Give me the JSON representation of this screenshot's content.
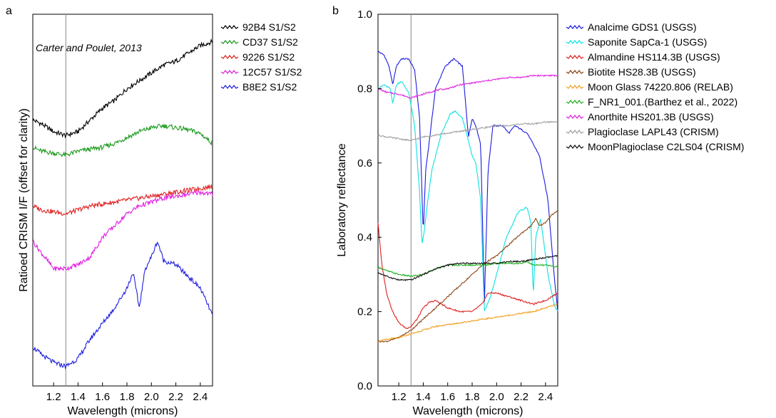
{
  "chart_data": [
    {
      "type": "line",
      "panel_label": "a",
      "xlabel": "Wavelength (microns)",
      "ylabel": "Ratioed CRISM I/F (offset for clarity)",
      "xlim": [
        1.03,
        2.5
      ],
      "xticks": [
        1.2,
        1.4,
        1.6,
        1.8,
        2.0,
        2.2,
        2.4
      ],
      "yticks_shown": false,
      "annotation": "Carter and Poulet, 2013",
      "reference_line_x": 1.3,
      "legend_position": "right-outside",
      "series": [
        {
          "name": "92B4 S1/S2",
          "color": "#000000",
          "x": [
            1.03,
            1.1,
            1.2,
            1.3,
            1.4,
            1.5,
            1.6,
            1.7,
            1.8,
            1.9,
            2.0,
            2.1,
            2.2,
            2.3,
            2.4,
            2.5
          ],
          "y": [
            0.78,
            0.77,
            0.75,
            0.74,
            0.75,
            0.78,
            0.81,
            0.83,
            0.86,
            0.88,
            0.9,
            0.92,
            0.93,
            0.95,
            0.97,
            0.98
          ]
        },
        {
          "name": "CD37 S1/S2",
          "color": "#1a9a1a",
          "x": [
            1.03,
            1.1,
            1.2,
            1.3,
            1.4,
            1.5,
            1.6,
            1.7,
            1.8,
            1.9,
            2.0,
            2.1,
            2.2,
            2.3,
            2.4,
            2.5
          ],
          "y": [
            0.71,
            0.7,
            0.695,
            0.69,
            0.7,
            0.705,
            0.71,
            0.72,
            0.735,
            0.75,
            0.76,
            0.765,
            0.76,
            0.755,
            0.745,
            0.72
          ]
        },
        {
          "name": "9226 S1/S2",
          "color": "#e02020",
          "x": [
            1.03,
            1.1,
            1.2,
            1.3,
            1.4,
            1.5,
            1.6,
            1.7,
            1.8,
            1.9,
            2.0,
            2.1,
            2.2,
            2.3,
            2.4,
            2.5
          ],
          "y": [
            0.56,
            0.55,
            0.545,
            0.54,
            0.55,
            0.56,
            0.565,
            0.57,
            0.575,
            0.58,
            0.585,
            0.59,
            0.595,
            0.6,
            0.605,
            0.61
          ]
        },
        {
          "name": "12C57 S1/S2",
          "color": "#e020e0",
          "x": [
            1.03,
            1.1,
            1.2,
            1.3,
            1.4,
            1.5,
            1.6,
            1.7,
            1.8,
            1.9,
            2.0,
            2.1,
            2.2,
            2.3,
            2.4,
            2.5
          ],
          "y": [
            0.47,
            0.44,
            0.4,
            0.4,
            0.41,
            0.43,
            0.48,
            0.51,
            0.54,
            0.56,
            0.57,
            0.58,
            0.585,
            0.59,
            0.595,
            0.59
          ]
        },
        {
          "name": "B8E2 S1/S2",
          "color": "#2020e0",
          "x": [
            1.03,
            1.1,
            1.2,
            1.3,
            1.4,
            1.5,
            1.6,
            1.7,
            1.8,
            1.85,
            1.9,
            1.95,
            2.0,
            2.05,
            2.1,
            2.2,
            2.3,
            2.4,
            2.5
          ],
          "y": [
            0.2,
            0.18,
            0.16,
            0.15,
            0.17,
            0.22,
            0.26,
            0.3,
            0.35,
            0.39,
            0.3,
            0.4,
            0.43,
            0.47,
            0.42,
            0.41,
            0.38,
            0.35,
            0.28
          ]
        }
      ]
    },
    {
      "type": "line",
      "panel_label": "b",
      "xlabel": "Wavelength (microns)",
      "ylabel": "Laboratory reflectance",
      "xlim": [
        1.03,
        2.5
      ],
      "ylim": [
        0.0,
        1.0
      ],
      "xticks": [
        1.2,
        1.4,
        1.6,
        1.8,
        2.0,
        2.2,
        2.4
      ],
      "yticks": [
        0.0,
        0.2,
        0.4,
        0.6,
        0.8,
        1.0
      ],
      "ytick_labels": [
        "0.0",
        "0.2",
        "0.4",
        "0.6",
        "0.8",
        "1.0"
      ],
      "reference_line_x": 1.3,
      "legend_position": "right-outside",
      "series": [
        {
          "name": "Analcime GDS1 (USGS)",
          "color": "#1c1ce0",
          "x": [
            1.03,
            1.08,
            1.12,
            1.15,
            1.18,
            1.22,
            1.28,
            1.33,
            1.37,
            1.4,
            1.42,
            1.45,
            1.5,
            1.58,
            1.65,
            1.72,
            1.77,
            1.8,
            1.83,
            1.87,
            1.9,
            1.93,
            1.97,
            2.05,
            2.1,
            2.15,
            2.25,
            2.35,
            2.42,
            2.47,
            2.5
          ],
          "y": [
            0.9,
            0.89,
            0.86,
            0.81,
            0.86,
            0.88,
            0.88,
            0.85,
            0.72,
            0.41,
            0.58,
            0.66,
            0.8,
            0.86,
            0.88,
            0.86,
            0.67,
            0.72,
            0.7,
            0.65,
            0.22,
            0.58,
            0.7,
            0.7,
            0.68,
            0.7,
            0.68,
            0.62,
            0.5,
            0.3,
            0.2
          ]
        },
        {
          "name": "Saponite SapCa-1 (USGS)",
          "color": "#10e0e0",
          "x": [
            1.03,
            1.08,
            1.13,
            1.15,
            1.18,
            1.22,
            1.28,
            1.33,
            1.37,
            1.39,
            1.41,
            1.43,
            1.47,
            1.55,
            1.62,
            1.66,
            1.72,
            1.77,
            1.8,
            1.83,
            1.87,
            1.9,
            1.95,
            2.0,
            2.08,
            2.18,
            2.25,
            2.28,
            2.3,
            2.32,
            2.36,
            2.42,
            2.47,
            2.5
          ],
          "y": [
            0.8,
            0.81,
            0.8,
            0.76,
            0.81,
            0.82,
            0.79,
            0.7,
            0.52,
            0.38,
            0.42,
            0.48,
            0.58,
            0.68,
            0.73,
            0.74,
            0.72,
            0.66,
            0.62,
            0.6,
            0.5,
            0.2,
            0.24,
            0.3,
            0.4,
            0.47,
            0.48,
            0.44,
            0.24,
            0.4,
            0.45,
            0.3,
            0.22,
            0.2
          ]
        },
        {
          "name": "Almandine HS114.3B (USGS)",
          "color": "#e02020",
          "x": [
            1.03,
            1.06,
            1.1,
            1.15,
            1.2,
            1.26,
            1.3,
            1.35,
            1.4,
            1.45,
            1.5,
            1.55,
            1.6,
            1.7,
            1.8,
            1.88,
            1.93,
            2.0,
            2.1,
            2.2,
            2.3,
            2.4,
            2.5
          ],
          "y": [
            0.44,
            0.33,
            0.25,
            0.2,
            0.17,
            0.155,
            0.16,
            0.18,
            0.21,
            0.225,
            0.23,
            0.22,
            0.21,
            0.2,
            0.2,
            0.22,
            0.25,
            0.25,
            0.24,
            0.23,
            0.22,
            0.23,
            0.25
          ]
        },
        {
          "name": "Biotite HS28.3B (USGS)",
          "color": "#8b4513",
          "x": [
            1.03,
            1.1,
            1.2,
            1.3,
            1.4,
            1.5,
            1.6,
            1.7,
            1.8,
            1.9,
            2.0,
            2.1,
            2.2,
            2.28,
            2.32,
            2.35,
            2.4,
            2.45,
            2.5
          ],
          "y": [
            0.12,
            0.12,
            0.13,
            0.15,
            0.18,
            0.21,
            0.24,
            0.27,
            0.3,
            0.33,
            0.35,
            0.38,
            0.41,
            0.43,
            0.45,
            0.43,
            0.44,
            0.46,
            0.47
          ]
        },
        {
          "name": "Moon Glass 74220.806 (RELAB)",
          "color": "#f0a020",
          "x": [
            1.03,
            1.1,
            1.2,
            1.3,
            1.4,
            1.5,
            1.6,
            1.7,
            1.8,
            1.9,
            2.0,
            2.1,
            2.2,
            2.3,
            2.4,
            2.5
          ],
          "y": [
            0.12,
            0.125,
            0.13,
            0.14,
            0.15,
            0.16,
            0.165,
            0.17,
            0.175,
            0.18,
            0.185,
            0.19,
            0.195,
            0.2,
            0.21,
            0.22
          ]
        },
        {
          "name": "F_NR1_001.(Barthez et al., 2022)",
          "color": "#20b020",
          "x": [
            1.03,
            1.1,
            1.2,
            1.3,
            1.4,
            1.5,
            1.6,
            1.7,
            1.8,
            1.9,
            2.0,
            2.1,
            2.2,
            2.25,
            2.3,
            2.4,
            2.5
          ],
          "y": [
            0.32,
            0.31,
            0.3,
            0.295,
            0.3,
            0.315,
            0.325,
            0.325,
            0.325,
            0.325,
            0.33,
            0.33,
            0.33,
            0.335,
            0.325,
            0.325,
            0.32
          ]
        },
        {
          "name": "Anorthite HS201.3B (USGS)",
          "color": "#e020e0",
          "x": [
            1.03,
            1.1,
            1.2,
            1.3,
            1.4,
            1.5,
            1.6,
            1.7,
            1.8,
            1.9,
            2.0,
            2.1,
            2.2,
            2.3,
            2.4,
            2.5
          ],
          "y": [
            0.8,
            0.79,
            0.785,
            0.775,
            0.785,
            0.795,
            0.8,
            0.81,
            0.815,
            0.82,
            0.825,
            0.83,
            0.83,
            0.835,
            0.835,
            0.835
          ]
        },
        {
          "name": "Plagioclase LAPL43 (CRISM)",
          "color": "#a0a0a0",
          "x": [
            1.03,
            1.1,
            1.2,
            1.3,
            1.4,
            1.5,
            1.6,
            1.7,
            1.8,
            1.9,
            2.0,
            2.1,
            2.2,
            2.3,
            2.4,
            2.5
          ],
          "y": [
            0.675,
            0.67,
            0.665,
            0.66,
            0.67,
            0.675,
            0.68,
            0.685,
            0.69,
            0.695,
            0.7,
            0.7,
            0.705,
            0.705,
            0.71,
            0.71
          ]
        },
        {
          "name": "MoonPlagioclase C2LS04 (CRISM)",
          "color": "#101010",
          "x": [
            1.03,
            1.1,
            1.2,
            1.3,
            1.4,
            1.5,
            1.6,
            1.7,
            1.8,
            1.9,
            2.0,
            2.1,
            2.2,
            2.3,
            2.4,
            2.5
          ],
          "y": [
            0.305,
            0.295,
            0.285,
            0.285,
            0.3,
            0.315,
            0.325,
            0.33,
            0.33,
            0.33,
            0.33,
            0.335,
            0.335,
            0.34,
            0.345,
            0.35
          ]
        }
      ]
    }
  ]
}
